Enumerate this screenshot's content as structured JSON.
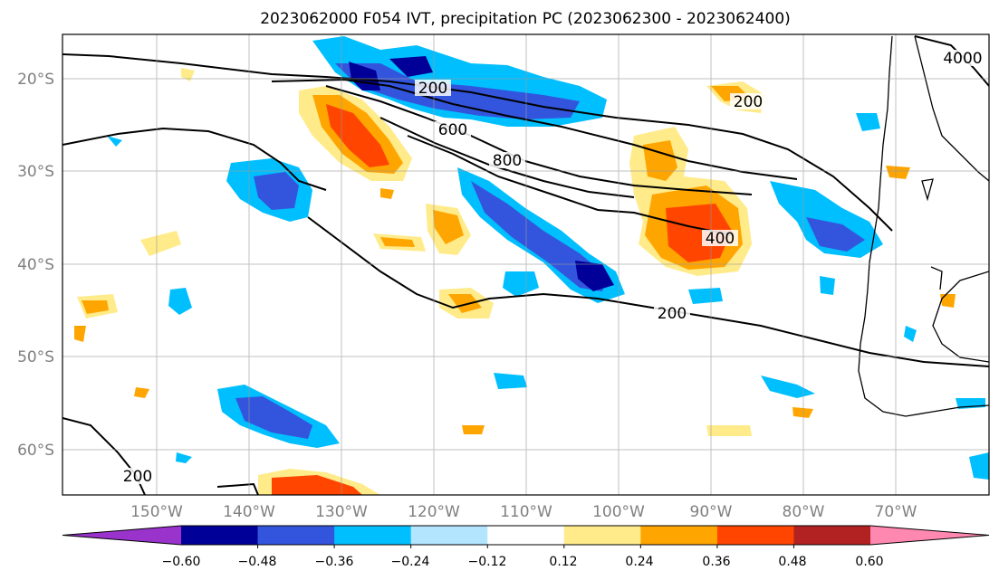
{
  "title": "2023062000 F054 IVT, precipitation PC (2023062300 - 2023062400)",
  "map": {
    "lat_labels": [
      "20°S",
      "30°S",
      "40°S",
      "50°S",
      "60°S"
    ],
    "lon_labels": [
      "150°W",
      "140°W",
      "130°W",
      "120°W",
      "110°W",
      "100°W",
      "90°W",
      "80°W",
      "70°W"
    ],
    "contour_labels": [
      "200",
      "600",
      "800",
      "400",
      "200",
      "200",
      "4000",
      "200"
    ]
  },
  "colorbar": {
    "tick_labels": [
      "−0.60",
      "−0.48",
      "−0.36",
      "−0.24",
      "−0.12",
      "0.12",
      "0.24",
      "0.36",
      "0.48",
      "0.60"
    ],
    "colors": [
      "#9933cc",
      "#000099",
      "#3355dd",
      "#00bfff",
      "#b3e5ff",
      "#ffffff",
      "#ffeb8a",
      "#ffa500",
      "#ff4500",
      "#b22222",
      "#ff88b0"
    ]
  },
  "legend_colors": {
    "neg_strong": "#000099",
    "neg_mid": "#3355dd",
    "neg_light": "#00bfff",
    "neg_faint": "#b3e5ff",
    "pos_faint": "#ffeb8a",
    "pos_light": "#ffa500",
    "pos_mid": "#ff4500"
  }
}
